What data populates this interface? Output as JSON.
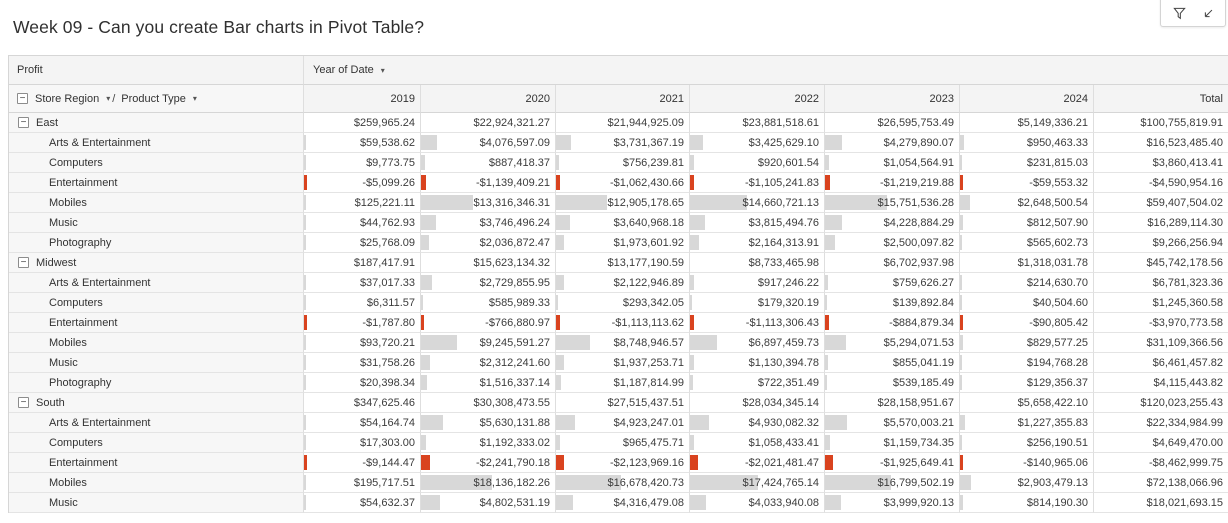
{
  "title": "Week 09 - Can you create Bar charts in Pivot Table?",
  "icons": {
    "collapse": "−",
    "dropdown": "▾",
    "filter": "funnel-icon",
    "focus": "diagonal-arrow-icon"
  },
  "colors": {
    "positive_bar": "#d8d8d8",
    "negative_bar": "#d9431f",
    "header_bg": "#f4f4f4",
    "label_bg": "#f7f7f7"
  },
  "table": {
    "measure_label": "Profit",
    "column_field_label": "Year of Date",
    "row_field_label": "Store Region",
    "row_field_separator": "/",
    "row_subfield_label": "Product Type",
    "columns": [
      "2019",
      "2020",
      "2021",
      "2022",
      "2023",
      "2024",
      "Total"
    ],
    "groups": [
      {
        "region": "East",
        "totals": [
          259965.24,
          22924321.27,
          21944925.09,
          23881518.61,
          26595753.49,
          5149336.21,
          100755819.91
        ],
        "rows": [
          {
            "label": "Arts & Entertainment",
            "values": [
              59538.62,
              4076597.09,
              3731367.19,
              3425629.1,
              4279890.07,
              950463.33,
              16523485.4
            ]
          },
          {
            "label": "Computers",
            "values": [
              9773.75,
              887418.37,
              756239.81,
              920601.54,
              1054564.91,
              231815.03,
              3860413.41
            ]
          },
          {
            "label": "Entertainment",
            "values": [
              -5099.26,
              -1139409.21,
              -1062430.66,
              -1105241.83,
              -1219219.88,
              -59553.32,
              -4590954.16
            ]
          },
          {
            "label": "Mobiles",
            "values": [
              125221.11,
              13316346.31,
              12905178.65,
              14660721.13,
              15751536.28,
              2648500.54,
              59407504.02
            ]
          },
          {
            "label": "Music",
            "values": [
              44762.93,
              3746496.24,
              3640968.18,
              3815494.76,
              4228884.29,
              812507.9,
              16289114.3
            ]
          },
          {
            "label": "Photography",
            "values": [
              25768.09,
              2036872.47,
              1973601.92,
              2164313.91,
              2500097.82,
              565602.73,
              9266256.94
            ]
          }
        ]
      },
      {
        "region": "Midwest",
        "totals": [
          187417.91,
          15623134.32,
          13177190.59,
          8733465.98,
          6702937.98,
          1318031.78,
          45742178.56
        ],
        "rows": [
          {
            "label": "Arts & Entertainment",
            "values": [
              37017.33,
              2729855.95,
              2122946.89,
              917246.22,
              759626.27,
              214630.7,
              6781323.36
            ]
          },
          {
            "label": "Computers",
            "values": [
              6311.57,
              585989.33,
              293342.05,
              179320.19,
              139892.84,
              40504.6,
              1245360.58
            ]
          },
          {
            "label": "Entertainment",
            "values": [
              -1787.8,
              -766880.97,
              -1113113.62,
              -1113306.43,
              -884879.34,
              -90805.42,
              -3970773.58
            ]
          },
          {
            "label": "Mobiles",
            "values": [
              93720.21,
              9245591.27,
              8748946.57,
              6897459.73,
              5294071.53,
              829577.25,
              31109366.56
            ]
          },
          {
            "label": "Music",
            "values": [
              31758.26,
              2312241.6,
              1937253.71,
              1130394.78,
              855041.19,
              194768.28,
              6461457.82
            ]
          },
          {
            "label": "Photography",
            "values": [
              20398.34,
              1516337.14,
              1187814.99,
              722351.49,
              539185.49,
              129356.37,
              4115443.82
            ]
          }
        ]
      },
      {
        "region": "South",
        "totals": [
          347625.46,
          30308473.55,
          27515437.51,
          28034345.14,
          28158951.67,
          5658422.1,
          120023255.43
        ],
        "rows": [
          {
            "label": "Arts & Entertainment",
            "values": [
              54164.74,
              5630131.88,
              4923247.01,
              4930082.32,
              5570003.21,
              1227355.83,
              22334984.99
            ]
          },
          {
            "label": "Computers",
            "values": [
              17303.0,
              1192333.02,
              965475.71,
              1058433.41,
              1159734.35,
              256190.51,
              4649470.0
            ]
          },
          {
            "label": "Entertainment",
            "values": [
              -9144.47,
              -2241790.18,
              -2123969.16,
              -2021481.47,
              -1925649.41,
              -140965.06,
              -8462999.75
            ]
          },
          {
            "label": "Mobiles",
            "values": [
              195717.51,
              18136182.26,
              16678420.73,
              17424765.14,
              16799502.19,
              2903479.13,
              72138066.96
            ]
          },
          {
            "label": "Music",
            "values": [
              54632.37,
              4802531.19,
              4316479.08,
              4033940.08,
              3999920.13,
              814190.3,
              18021693.15
            ]
          }
        ]
      }
    ]
  }
}
